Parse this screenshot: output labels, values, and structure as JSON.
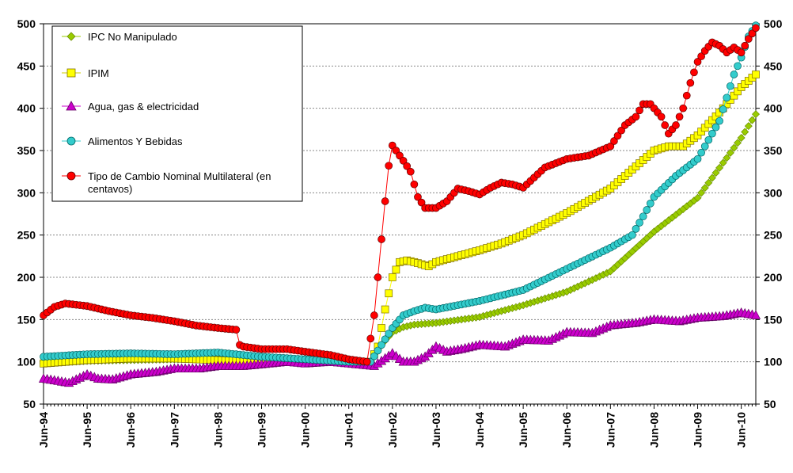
{
  "chart_data": {
    "type": "line",
    "ylim": [
      50,
      500
    ],
    "y_ticks": [
      "50",
      "100",
      "150",
      "200",
      "250",
      "300",
      "350",
      "400",
      "450",
      "500"
    ],
    "x_tick_labels": [
      "Jun-94",
      "Jun-95",
      "Jun-96",
      "Jun-97",
      "Jun-98",
      "Jun-99",
      "Jun-00",
      "Jun-01",
      "Jun-02",
      "Jun-03",
      "Jun-04",
      "Jun-05",
      "Jun-06",
      "Jun-07",
      "Jun-08",
      "Jun-09",
      "Jun-10"
    ],
    "x_start": "Jun-94",
    "x_end": "Oct-10",
    "grid": true,
    "legend_position": "top-left",
    "series": [
      {
        "name": "IPC  No Manipulado",
        "color": "#99CC00",
        "marker": "diamond",
        "anchors": [
          [
            "Jun-94",
            98
          ],
          [
            "Jun-95",
            101
          ],
          [
            "Jun-96",
            102
          ],
          [
            "Jun-97",
            103
          ],
          [
            "Jun-98",
            104
          ],
          [
            "Jun-99",
            103
          ],
          [
            "Jun-00",
            102
          ],
          [
            "Jun-01",
            100
          ],
          [
            "Dec-01",
            99
          ],
          [
            "Mar-02",
            120
          ],
          [
            "Jun-02",
            135
          ],
          [
            "Sep-02",
            141
          ],
          [
            "Dec-02",
            144
          ],
          [
            "Jun-03",
            146
          ],
          [
            "Jun-04",
            153
          ],
          [
            "Jun-05",
            167
          ],
          [
            "Jun-06",
            183
          ],
          [
            "Jun-07",
            207
          ],
          [
            "Jun-08",
            254
          ],
          [
            "Jun-09",
            294
          ],
          [
            "Jun-10",
            365
          ],
          [
            "Oct-10",
            393
          ]
        ]
      },
      {
        "name": "IPIM",
        "color": "#FFFF00",
        "marker": "square",
        "anchors": [
          [
            "Jun-94",
            98
          ],
          [
            "Jun-95",
            102
          ],
          [
            "Jun-96",
            104
          ],
          [
            "Jun-97",
            104
          ],
          [
            "Jun-98",
            102
          ],
          [
            "Jun-99",
            100
          ],
          [
            "Jun-00",
            101
          ],
          [
            "Jun-01",
            100
          ],
          [
            "Dec-01",
            100
          ],
          [
            "Feb-02",
            118
          ],
          [
            "Apr-02",
            162
          ],
          [
            "Jun-02",
            200
          ],
          [
            "Aug-02",
            218
          ],
          [
            "Oct-02",
            220
          ],
          [
            "Dec-02",
            218
          ],
          [
            "Apr-03",
            213
          ],
          [
            "Jun-03",
            218
          ],
          [
            "Jun-04",
            232
          ],
          [
            "Dec-04",
            240
          ],
          [
            "Jun-05",
            250
          ],
          [
            "Jun-06",
            276
          ],
          [
            "Jun-07",
            305
          ],
          [
            "Jun-08",
            350
          ],
          [
            "Oct-08",
            355
          ],
          [
            "Feb-09",
            355
          ],
          [
            "Jun-09",
            368
          ],
          [
            "Dec-09",
            395
          ],
          [
            "Jun-10",
            425
          ],
          [
            "Oct-10",
            440
          ]
        ]
      },
      {
        "name": "Agua, gas & electricidad",
        "color": "#CC00CC",
        "marker": "triangle",
        "anchors": [
          [
            "Jun-94",
            80
          ],
          [
            "Sep-94",
            78
          ],
          [
            "Jan-95",
            75
          ],
          [
            "Jun-95",
            85
          ],
          [
            "Sep-95",
            80
          ],
          [
            "Jan-96",
            79
          ],
          [
            "Jun-96",
            85
          ],
          [
            "Jan-97",
            88
          ],
          [
            "Jun-97",
            92
          ],
          [
            "Jan-98",
            92
          ],
          [
            "Jun-98",
            95
          ],
          [
            "Jan-99",
            95
          ],
          [
            "Jun-99",
            97
          ],
          [
            "Jan-00",
            100
          ],
          [
            "Jun-00",
            98
          ],
          [
            "Jan-01",
            100
          ],
          [
            "Jun-01",
            98
          ],
          [
            "Jan-02",
            95
          ],
          [
            "Jun-02",
            110
          ],
          [
            "Sep-02",
            100
          ],
          [
            "Dec-02",
            100
          ],
          [
            "Mar-03",
            106
          ],
          [
            "Jun-03",
            118
          ],
          [
            "Sep-03",
            112
          ],
          [
            "Jan-04",
            115
          ],
          [
            "Jun-04",
            120
          ],
          [
            "Jan-05",
            118
          ],
          [
            "Jun-05",
            126
          ],
          [
            "Jan-06",
            125
          ],
          [
            "Jun-06",
            135
          ],
          [
            "Jan-07",
            134
          ],
          [
            "Jun-07",
            143
          ],
          [
            "Jan-08",
            146
          ],
          [
            "Jun-08",
            150
          ],
          [
            "Jan-09",
            148
          ],
          [
            "Jun-09",
            152
          ],
          [
            "Jan-10",
            154
          ],
          [
            "Jun-10",
            158
          ],
          [
            "Oct-10",
            155
          ]
        ]
      },
      {
        "name": "Alimentos Y Bebidas",
        "color": "#33CCCC",
        "marker": "circle",
        "anchors": [
          [
            "Jun-94",
            106
          ],
          [
            "Jun-95",
            109
          ],
          [
            "Jun-96",
            110
          ],
          [
            "Jun-97",
            109
          ],
          [
            "Jun-98",
            111
          ],
          [
            "Jun-99",
            106
          ],
          [
            "Jun-00",
            103
          ],
          [
            "Jun-01",
            100
          ],
          [
            "Dec-01",
            100
          ],
          [
            "Mar-02",
            120
          ],
          [
            "Jun-02",
            140
          ],
          [
            "Sep-02",
            155
          ],
          [
            "Dec-02",
            160
          ],
          [
            "Mar-03",
            164
          ],
          [
            "Jun-03",
            162
          ],
          [
            "Jun-04",
            172
          ],
          [
            "Jun-05",
            185
          ],
          [
            "Jun-06",
            210
          ],
          [
            "Jun-07",
            235
          ],
          [
            "Dec-07",
            250
          ],
          [
            "Mar-08",
            272
          ],
          [
            "Jun-08",
            295
          ],
          [
            "Dec-08",
            320
          ],
          [
            "Jun-09",
            340
          ],
          [
            "Dec-09",
            385
          ],
          [
            "Apr-10",
            440
          ],
          [
            "Jun-10",
            460
          ],
          [
            "Aug-10",
            485
          ],
          [
            "Oct-10",
            498
          ]
        ]
      },
      {
        "name": "Tipo de Cambio  Nominal Multilateral (en centavos)",
        "color": "#FF0000",
        "marker": "circle",
        "anchors": [
          [
            "Jun-94",
            155
          ],
          [
            "Sep-94",
            165
          ],
          [
            "Dec-94",
            169
          ],
          [
            "Jun-95",
            166
          ],
          [
            "Dec-95",
            160
          ],
          [
            "Jun-96",
            155
          ],
          [
            "Dec-96",
            152
          ],
          [
            "Jun-97",
            148
          ],
          [
            "Dec-97",
            143
          ],
          [
            "Jun-98",
            140
          ],
          [
            "Nov-98",
            138
          ],
          [
            "Dec-98",
            120
          ],
          [
            "Jan-99",
            118
          ],
          [
            "Jun-99",
            115
          ],
          [
            "Jan-00",
            115
          ],
          [
            "Jun-00",
            112
          ],
          [
            "Jan-01",
            108
          ],
          [
            "Jun-01",
            103
          ],
          [
            "Nov-01",
            100
          ],
          [
            "Jan-02",
            155
          ],
          [
            "Feb-02",
            200
          ],
          [
            "Mar-02",
            245
          ],
          [
            "Apr-02",
            290
          ],
          [
            "May-02",
            332
          ],
          [
            "Jun-02",
            356
          ],
          [
            "Jul-02",
            350
          ],
          [
            "Sep-02",
            338
          ],
          [
            "Nov-02",
            325
          ],
          [
            "Jan-03",
            295
          ],
          [
            "Mar-03",
            282
          ],
          [
            "Jun-03",
            282
          ],
          [
            "Sep-03",
            290
          ],
          [
            "Dec-03",
            305
          ],
          [
            "Mar-04",
            302
          ],
          [
            "Jun-04",
            298
          ],
          [
            "Sep-04",
            306
          ],
          [
            "Dec-04",
            312
          ],
          [
            "Mar-05",
            310
          ],
          [
            "Jun-05",
            306
          ],
          [
            "Sep-05",
            318
          ],
          [
            "Dec-05",
            330
          ],
          [
            "Jun-06",
            340
          ],
          [
            "Dec-06",
            344
          ],
          [
            "Jun-07",
            355
          ],
          [
            "Oct-07",
            380
          ],
          [
            "Jan-08",
            390
          ],
          [
            "Mar-08",
            405
          ],
          [
            "May-08",
            405
          ],
          [
            "Aug-08",
            390
          ],
          [
            "Oct-08",
            370
          ],
          [
            "Dec-08",
            380
          ],
          [
            "Feb-09",
            400
          ],
          [
            "Apr-09",
            430
          ],
          [
            "Jun-09",
            455
          ],
          [
            "Aug-09",
            468
          ],
          [
            "Oct-09",
            478
          ],
          [
            "Dec-09",
            474
          ],
          [
            "Feb-10",
            466
          ],
          [
            "Apr-10",
            472
          ],
          [
            "Jun-10",
            466
          ],
          [
            "Aug-10",
            482
          ],
          [
            "Oct-10",
            495
          ]
        ]
      }
    ]
  }
}
